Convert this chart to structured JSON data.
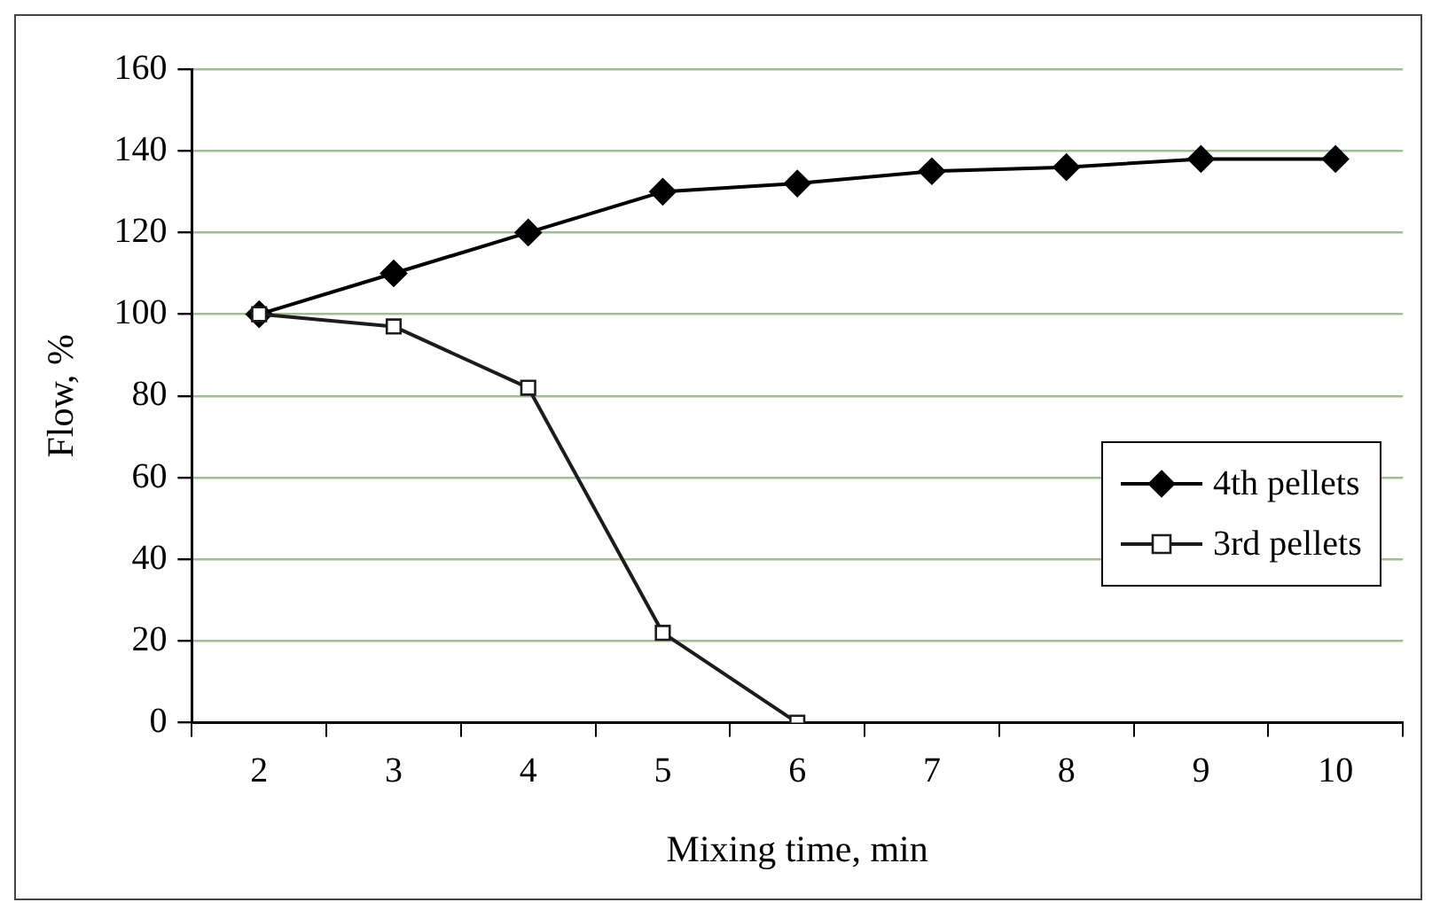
{
  "chart_data": {
    "type": "line",
    "xlabel": "Mixing time, min",
    "ylabel": "Flow, %",
    "categories": [
      "2",
      "3",
      "4",
      "5",
      "6",
      "7",
      "8",
      "9",
      "10"
    ],
    "series": [
      {
        "name": "4th pellets",
        "color": "#000000",
        "marker": "diamond",
        "values": [
          100,
          110,
          120,
          130,
          132,
          135,
          136,
          138,
          138
        ]
      },
      {
        "name": "3rd pellets",
        "color": "#1c1c1c",
        "marker": "square",
        "values": [
          100,
          97,
          82,
          22,
          0,
          null,
          null,
          null,
          null
        ]
      }
    ],
    "ylim": [
      0,
      160
    ],
    "yticks": [
      0,
      20,
      40,
      60,
      80,
      100,
      120,
      140,
      160
    ],
    "grid": "y",
    "legend": "right"
  }
}
